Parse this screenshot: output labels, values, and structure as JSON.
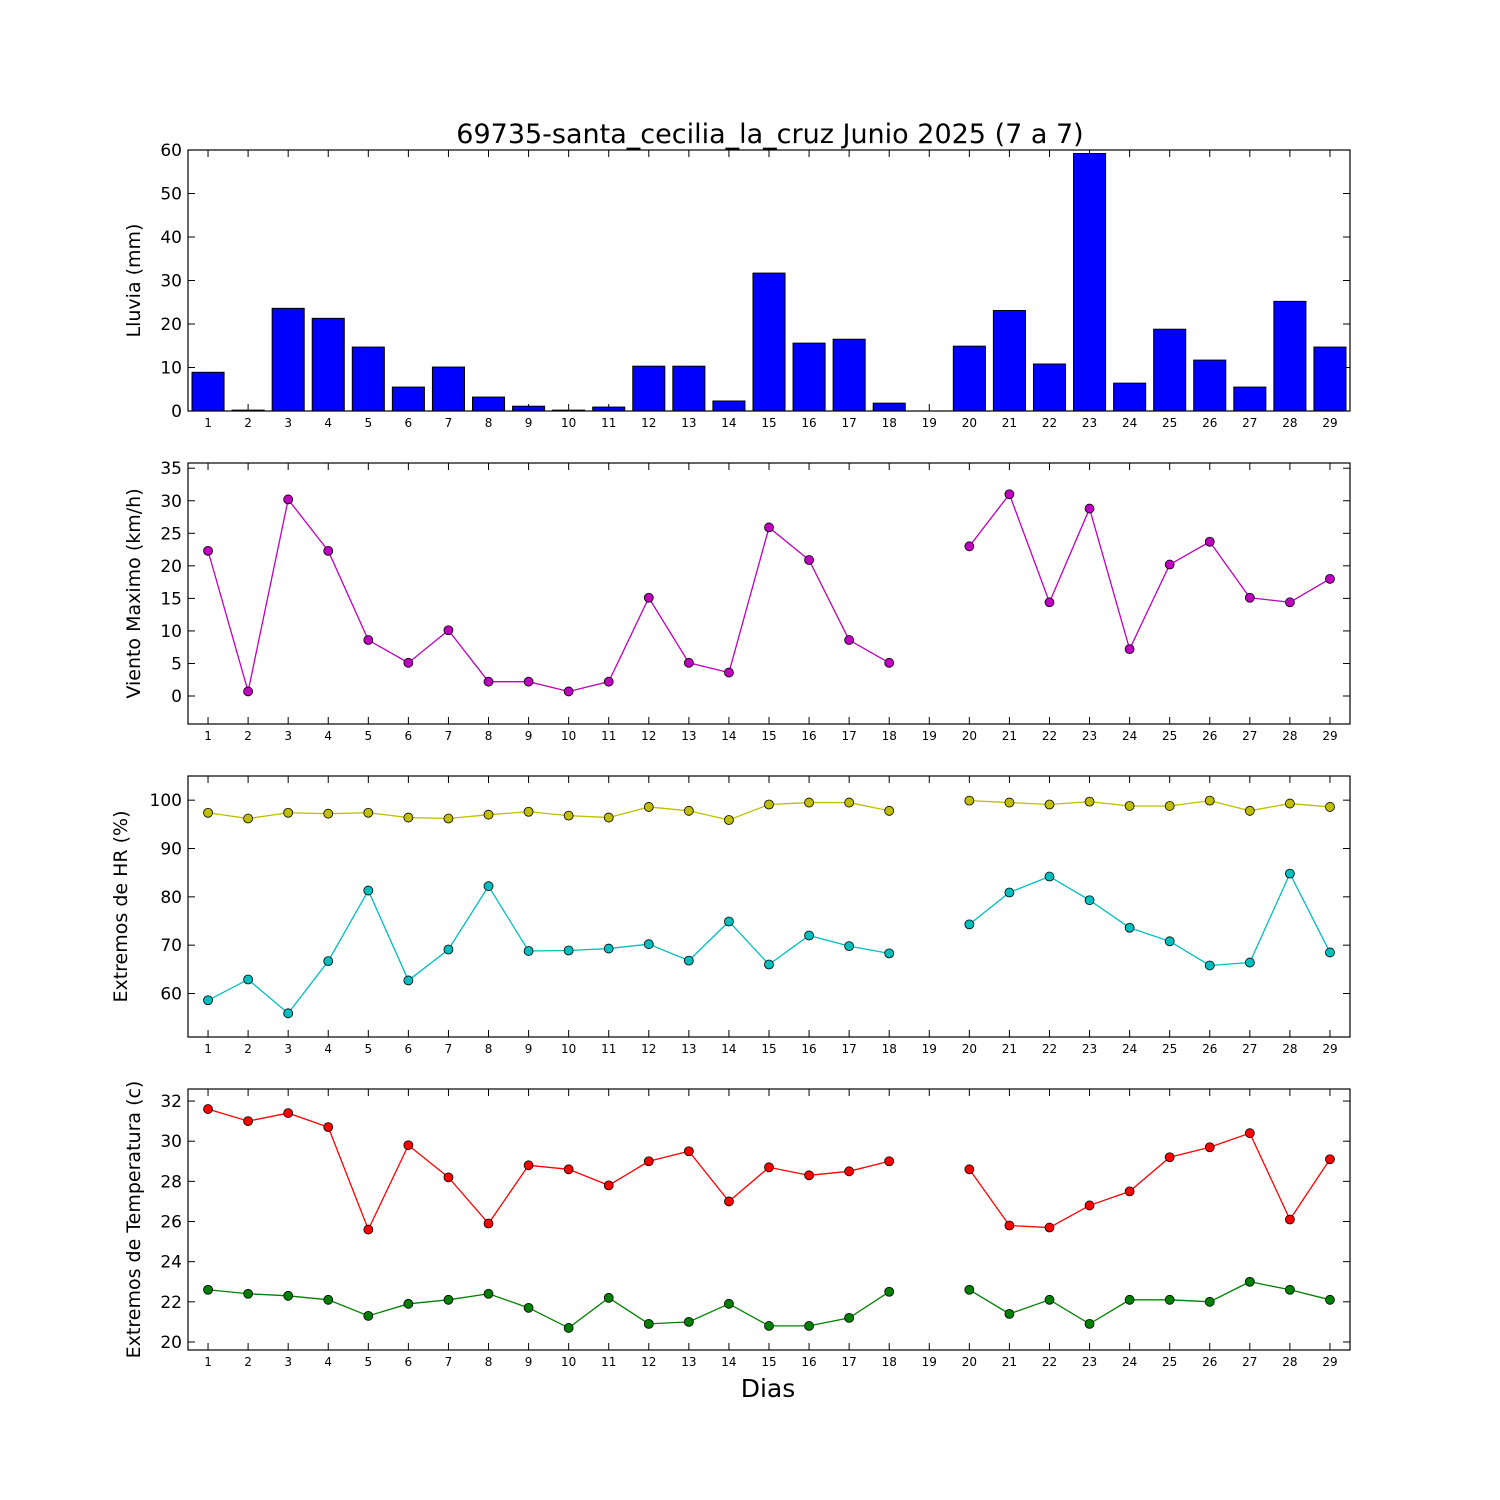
{
  "figure": {
    "title": "69735-santa_cecilia_la_cruz Junio 2025  (7 a 7)",
    "xlabel": "Dias"
  },
  "chart_data": [
    {
      "type": "bar",
      "ylabel": "Lluvia (mm)",
      "color": "#0000ff",
      "ylim": [
        0,
        60
      ],
      "yticks": [
        0,
        10,
        20,
        30,
        40,
        50,
        60
      ],
      "x": [
        1,
        2,
        3,
        4,
        5,
        6,
        7,
        8,
        9,
        10,
        11,
        12,
        13,
        14,
        15,
        16,
        17,
        18,
        19,
        20,
        21,
        22,
        23,
        24,
        25,
        26,
        27,
        28,
        29
      ],
      "values": [
        8.9,
        0.2,
        23.6,
        21.3,
        14.7,
        5.5,
        10.1,
        3.2,
        1.1,
        0.2,
        0.9,
        10.3,
        10.3,
        2.3,
        31.7,
        15.6,
        16.5,
        1.8,
        null,
        14.9,
        23.1,
        10.8,
        59.2,
        6.4,
        18.8,
        11.7,
        5.5,
        25.2,
        14.7
      ]
    },
    {
      "type": "line",
      "ylabel": "Viento Maximo (km/h)",
      "ylim": [
        -4.3,
        35.8
      ],
      "yticks": [
        0,
        5,
        10,
        15,
        20,
        25,
        30,
        35
      ],
      "x": [
        1,
        2,
        3,
        4,
        5,
        6,
        7,
        8,
        9,
        10,
        11,
        12,
        13,
        14,
        15,
        16,
        17,
        18,
        19,
        20,
        21,
        22,
        23,
        24,
        25,
        26,
        27,
        28,
        29
      ],
      "series": [
        {
          "color": "#bf00bf",
          "values": [
            22.3,
            0.7,
            30.2,
            22.3,
            8.6,
            5.1,
            10.1,
            2.2,
            2.2,
            0.7,
            2.2,
            15.1,
            5.1,
            3.6,
            25.9,
            20.9,
            8.6,
            5.1,
            null,
            23.0,
            31.0,
            14.4,
            28.8,
            7.2,
            20.2,
            23.7,
            15.1,
            14.4,
            18.0
          ]
        }
      ]
    },
    {
      "type": "line",
      "ylabel": "Extremos de HR (%)",
      "ylim": [
        51,
        105
      ],
      "yticks": [
        60,
        70,
        80,
        90,
        100
      ],
      "x": [
        1,
        2,
        3,
        4,
        5,
        6,
        7,
        8,
        9,
        10,
        11,
        12,
        13,
        14,
        15,
        16,
        17,
        18,
        19,
        20,
        21,
        22,
        23,
        24,
        25,
        26,
        27,
        28,
        29
      ],
      "series": [
        {
          "color": "#bfbf00",
          "values": [
            97.4,
            96.2,
            97.4,
            97.2,
            97.4,
            96.4,
            96.2,
            97.0,
            97.6,
            96.8,
            96.4,
            98.6,
            97.8,
            95.9,
            99.1,
            99.5,
            99.5,
            97.8,
            null,
            99.9,
            99.5,
            99.1,
            99.7,
            98.8,
            98.8,
            99.9,
            97.8,
            99.3,
            98.6
          ]
        },
        {
          "color": "#00bfbf",
          "values": [
            58.6,
            62.9,
            55.9,
            66.7,
            81.3,
            62.7,
            69.1,
            82.2,
            68.8,
            68.9,
            69.3,
            70.2,
            66.8,
            74.9,
            66.0,
            72.0,
            69.8,
            68.3,
            null,
            74.3,
            80.9,
            84.2,
            79.3,
            73.6,
            70.8,
            65.8,
            66.4,
            84.8,
            68.5
          ]
        }
      ]
    },
    {
      "type": "line",
      "ylabel": "Extremos de Temperatura (c)",
      "ylim": [
        19.6,
        32.6
      ],
      "yticks": [
        20,
        22,
        24,
        26,
        28,
        30,
        32
      ],
      "x": [
        1,
        2,
        3,
        4,
        5,
        6,
        7,
        8,
        9,
        10,
        11,
        12,
        13,
        14,
        15,
        16,
        17,
        18,
        19,
        20,
        21,
        22,
        23,
        24,
        25,
        26,
        27,
        28,
        29
      ],
      "series": [
        {
          "color": "#ff0000",
          "values": [
            31.6,
            31.0,
            31.4,
            30.7,
            25.6,
            29.8,
            28.2,
            25.9,
            28.8,
            28.6,
            27.8,
            29.0,
            29.5,
            27.0,
            28.7,
            28.3,
            28.5,
            29.0,
            null,
            28.6,
            25.8,
            25.7,
            26.8,
            27.5,
            29.2,
            29.7,
            30.4,
            26.1,
            29.1
          ]
        },
        {
          "color": "#008000",
          "values": [
            22.6,
            22.4,
            22.3,
            22.1,
            21.3,
            21.9,
            22.1,
            22.4,
            21.7,
            20.7,
            22.2,
            20.9,
            21.0,
            21.9,
            20.8,
            20.8,
            21.2,
            22.5,
            null,
            22.6,
            21.4,
            22.1,
            20.9,
            22.1,
            22.1,
            22.0,
            23.0,
            22.6,
            22.1
          ]
        }
      ]
    }
  ]
}
